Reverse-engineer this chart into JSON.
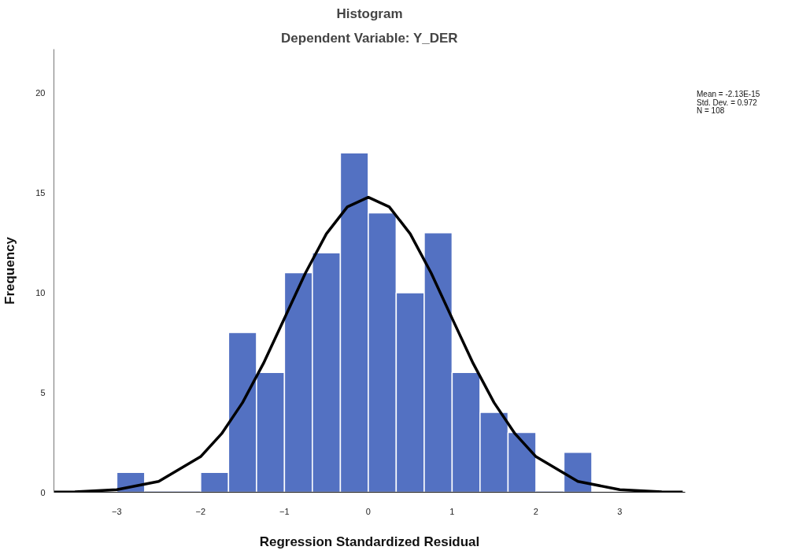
{
  "chart_data": {
    "type": "histogram",
    "title": "Histogram",
    "subtitle": "Dependent Variable: Y_DER",
    "xlabel": "Regression Standardized Residual",
    "ylabel": "Frequency",
    "bins": [
      -3,
      -2.667,
      -2.333,
      -2,
      -1.667,
      -1.333,
      -1,
      -0.667,
      -0.333,
      0,
      0.333,
      0.667,
      1,
      1.333,
      1.667,
      2,
      2.333,
      2.667
    ],
    "values": [
      1,
      0,
      0,
      1,
      8,
      6,
      11,
      12,
      17,
      14,
      10,
      13,
      6,
      4,
      3,
      0,
      2
    ],
    "color": "#5371c2",
    "series": [
      {
        "type": "line",
        "color": "#000000",
        "x": [
          -3.75,
          -3.5,
          -3,
          -2.5,
          -2,
          -1.75,
          -1.5,
          -1.25,
          -1,
          -0.75,
          -0.5,
          -0.25,
          0,
          0.25,
          0.5,
          0.75,
          1,
          1.25,
          1.5,
          1.75,
          2,
          2.5,
          3,
          3.5,
          3.75
        ],
        "values": [
          0.01,
          0.02,
          0.13,
          0.54,
          1.78,
          2.93,
          4.49,
          6.46,
          8.71,
          10.98,
          12.95,
          14.3,
          14.78,
          14.3,
          12.95,
          10.98,
          8.71,
          6.46,
          4.49,
          2.93,
          1.78,
          0.54,
          0.13,
          0.02,
          0.01
        ]
      }
    ],
    "annotations": [
      "Mean = -2.13E-15\nStd. Dev. = 0.972\nN = 108"
    ],
    "xlim": [
      -3.75,
      3.78
    ],
    "ylim": [
      0,
      22.2
    ],
    "xticks": [
      -3,
      -2,
      -1,
      0,
      1,
      2,
      3
    ],
    "yticks": [
      0,
      5,
      10,
      15,
      20
    ],
    "grid": false
  }
}
